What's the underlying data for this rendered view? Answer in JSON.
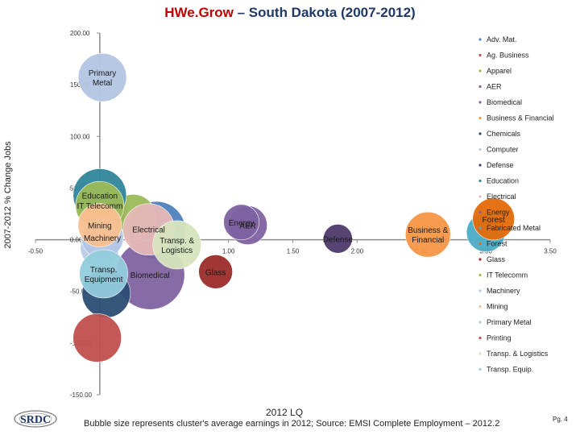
{
  "title": {
    "brand": "HWe.Grow",
    "rest": " – South Dakota (2007-2012)"
  },
  "footer": {
    "source": "Bubble size represents cluster's average earnings in 2012; Source: EMSI Complete Employment – 2012.2",
    "page": "Pg. 4",
    "logo_text": "SRDC"
  },
  "chart_data": {
    "type": "bubble",
    "xlabel": "2012 LQ",
    "ylabel": "2007-2012 % Change Jobs",
    "xlim": [
      -0.5,
      3.5
    ],
    "ylim": [
      -150,
      200
    ],
    "xticks": [
      -0.5,
      0.0,
      0.5,
      1.0,
      1.5,
      2.0,
      2.5,
      3.0,
      3.5
    ],
    "xtick_labels": [
      "-0.50",
      "0.00",
      "0.50",
      "1.00",
      "1.50",
      "2.00",
      "2.50",
      "3.00",
      "3.50"
    ],
    "yticks": [
      200,
      150,
      100,
      50,
      0,
      -50,
      -100,
      -150
    ],
    "ytick_labels": [
      "200.00",
      "150.00",
      "100.00",
      "50.00",
      "0.00",
      "-50.00",
      "-100.00",
      "-150.00"
    ],
    "grid": false,
    "legend_position": "right",
    "note": "Bubble size represents cluster's average earnings in 2012",
    "series": [
      {
        "name": "Adv. Mat.",
        "color": "#4f81bd",
        "x": 0.44,
        "y": 9,
        "size": 36,
        "label": ""
      },
      {
        "name": "Ag. Business",
        "color": "#c0504d",
        "x": 0.02,
        "y": 31,
        "size": 30,
        "label": ""
      },
      {
        "name": "Apparel",
        "color": "#9bbb59",
        "x": 0.26,
        "y": 22,
        "size": 28,
        "label": ""
      },
      {
        "name": "AER",
        "color": "#8064a2",
        "x": 1.15,
        "y": 14,
        "size": 24,
        "label": "AER"
      },
      {
        "name": "Biomedical",
        "color": "#8064a2",
        "x": 0.39,
        "y": -34,
        "size": 43,
        "label": "Biomedical"
      },
      {
        "name": "Business & Financial",
        "color": "#f79646",
        "x": 2.55,
        "y": 5,
        "size": 28,
        "label": "Business & Financial"
      },
      {
        "name": "Chemicals",
        "color": "#2c4d75",
        "x": 0.05,
        "y": -52,
        "size": 30,
        "label": ""
      },
      {
        "name": "Computer",
        "color": "#b9cde5",
        "x": 0.0,
        "y": -8,
        "size": 24,
        "label": ""
      },
      {
        "name": "Defense",
        "color": "#4f3a6b",
        "x": 1.85,
        "y": 1,
        "size": 18,
        "label": "Defense"
      },
      {
        "name": "Education",
        "color": "#31859c",
        "x": 0.0,
        "y": 43,
        "size": 33,
        "label": "Education"
      },
      {
        "name": "Electrical",
        "color": "#e6b9b8",
        "x": 0.38,
        "y": 10,
        "size": 32,
        "label": "Electrical"
      },
      {
        "name": "Energy",
        "color": "#7e62a1",
        "x": 1.1,
        "y": 17,
        "size": 22,
        "label": "Energy"
      },
      {
        "name": "Fabricated Metal",
        "color": "#4bacc6",
        "x": 3.0,
        "y": 7,
        "size": 24,
        "label": ""
      },
      {
        "name": "Forest",
        "color": "#e46c0a",
        "x": 3.06,
        "y": 20,
        "size": 26,
        "label": "Forest"
      },
      {
        "name": "Glass",
        "color": "#9b2d2a",
        "x": 0.9,
        "y": -31,
        "size": 21,
        "label": "Glass"
      },
      {
        "name": "IT Telecomm",
        "color": "#9bbb59",
        "x": 0.0,
        "y": 33,
        "size": 30,
        "label": "IT Telecomm"
      },
      {
        "name": "Machinery",
        "color": "#b4c7e7",
        "x": 0.02,
        "y": 2,
        "size": 26,
        "label": "Machinery"
      },
      {
        "name": "Mining",
        "color": "#fac090",
        "x": 0.0,
        "y": 14,
        "size": 27,
        "label": "Mining"
      },
      {
        "name": "Primary Metal",
        "color": "#b3c6e3",
        "x": 0.02,
        "y": 157,
        "size": 30,
        "label": "Primary Metal"
      },
      {
        "name": "Printing",
        "color": "#c0504d",
        "x": -0.02,
        "y": -95,
        "size": 30,
        "label": ""
      },
      {
        "name": "Transp. & Logistics",
        "color": "#d7e4bd",
        "x": 0.6,
        "y": -5,
        "size": 30,
        "label": "Transp. & Logistics"
      },
      {
        "name": "Transp. Equip.",
        "color": "#93cddd",
        "x": 0.03,
        "y": -33,
        "size": 30,
        "label": "Transp. Equipment"
      }
    ]
  }
}
